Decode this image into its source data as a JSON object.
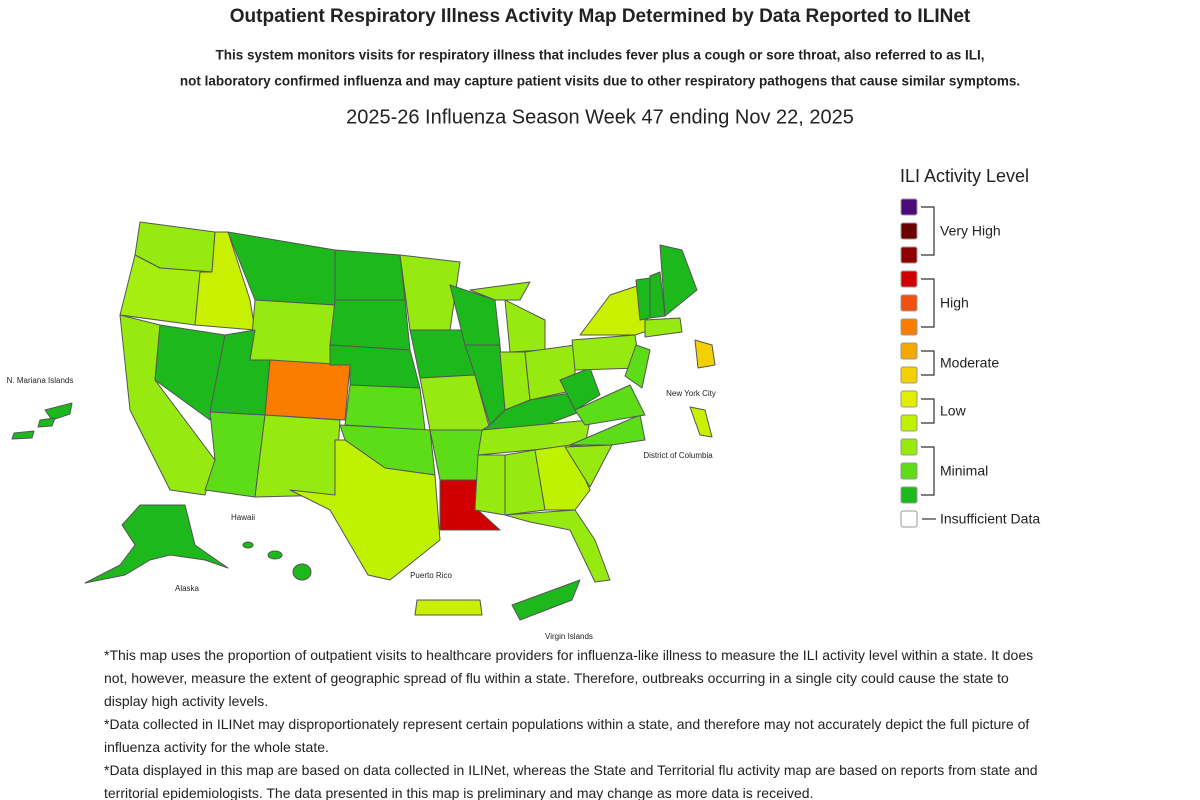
{
  "header": {
    "title": "Outpatient Respiratory Illness Activity Map Determined by Data Reported to ILINet",
    "description": [
      "This system monitors visits for respiratory illness that includes fever plus a cough or sore throat, also referred to as ILI,",
      "not laboratory confirmed influenza and may capture patient visits due to other respiratory pathogens that cause similar symptoms."
    ],
    "week": "2025-26 Influenza Season Week 47 ending Nov 22, 2025"
  },
  "map": {
    "places": [
      {
        "label": "N. Mariana Islands"
      },
      {
        "label": "Hawaii"
      },
      {
        "label": "Alaska"
      },
      {
        "label": "Puerto Rico"
      },
      {
        "label": "Virgin Islands"
      },
      {
        "label": "New York City"
      },
      {
        "label": "District of Columbia"
      }
    ]
  },
  "legend": {
    "title": "ILI Activity Level",
    "groups": [
      {
        "label": "Very High",
        "colors": [
          "#4b0a78",
          "#6b0000",
          "#8e0000"
        ]
      },
      {
        "label": "High",
        "colors": [
          "#d00000",
          "#f05010",
          "#fb7d00"
        ]
      },
      {
        "label": "Moderate",
        "colors": [
          "#f5a800",
          "#f5d000"
        ]
      },
      {
        "label": "Low",
        "colors": [
          "#e2ee00",
          "#bff200"
        ]
      },
      {
        "label": "Minimal",
        "colors": [
          "#96ea10",
          "#5ddc18",
          "#1cb81c"
        ]
      },
      {
        "label": "Insufficient Data",
        "colors": [
          "#ffffff"
        ]
      }
    ]
  },
  "footnotes": [
    "*This map uses the proportion of outpatient visits to healthcare providers for influenza-like illness to measure the ILI activity level within a state. It does not, however, measure the extent of geographic spread of flu within a state. Therefore, outbreaks occurring in a single city could cause the state to display high activity levels.",
    "*Data collected in ILINet may disproportionately represent certain populations within a state, and therefore may not accurately depict the full picture of influenza activity for the whole state.",
    "*Data displayed in this map are based on data collected in ILINet, whereas the State and Territorial flu activity map are based on reports from state and territorial epidemiologists. The data presented in this map is preliminary and may change as more data is received."
  ]
}
